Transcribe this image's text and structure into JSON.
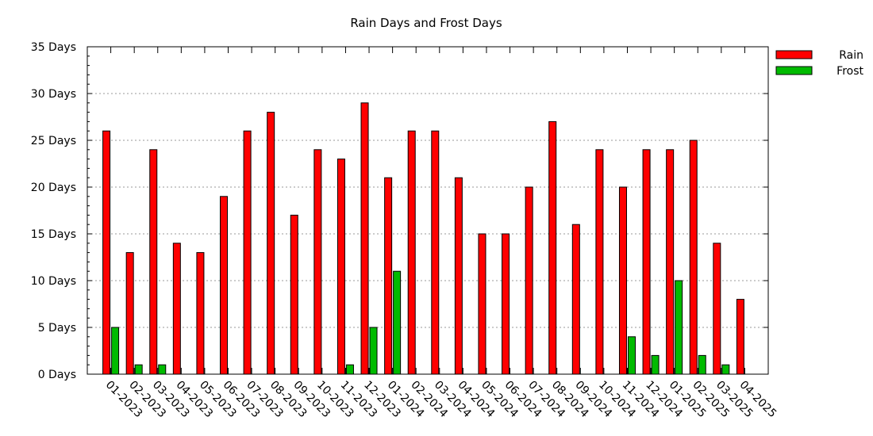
{
  "chart_data": {
    "type": "bar",
    "title": "Rain Days and Frost Days",
    "xlabel": "",
    "ylabel": "",
    "y_unit_suffix": " Days",
    "ylim": [
      0,
      35
    ],
    "yticks": [
      0,
      5,
      10,
      15,
      20,
      25,
      30,
      35
    ],
    "grid": true,
    "legend_position": "top-right",
    "categories": [
      "01-2023",
      "02-2023",
      "03-2023",
      "04-2023",
      "05-2023",
      "06-2023",
      "07-2023",
      "08-2023",
      "09-2023",
      "10-2023",
      "11-2023",
      "12-2023",
      "01-2024",
      "02-2024",
      "03-2024",
      "04-2024",
      "05-2024",
      "06-2024",
      "07-2024",
      "08-2024",
      "09-2024",
      "10-2024",
      "11-2024",
      "12-2024",
      "01-2025",
      "02-2025",
      "03-2025",
      "04-2025"
    ],
    "series": [
      {
        "name": "Rain",
        "color": "#ff0000",
        "values": [
          26,
          13,
          24,
          14,
          13,
          19,
          26,
          28,
          17,
          24,
          23,
          29,
          21,
          26,
          26,
          21,
          15,
          15,
          20,
          27,
          16,
          24,
          20,
          24,
          24,
          25,
          14,
          8
        ]
      },
      {
        "name": "Frost",
        "color": "#00bb00",
        "values": [
          5,
          1,
          1,
          0,
          0,
          0,
          0,
          0,
          0,
          0,
          1,
          5,
          11,
          0,
          0,
          0,
          0,
          0,
          0,
          0,
          0,
          0,
          4,
          2,
          10,
          2,
          1,
          0
        ]
      }
    ]
  }
}
